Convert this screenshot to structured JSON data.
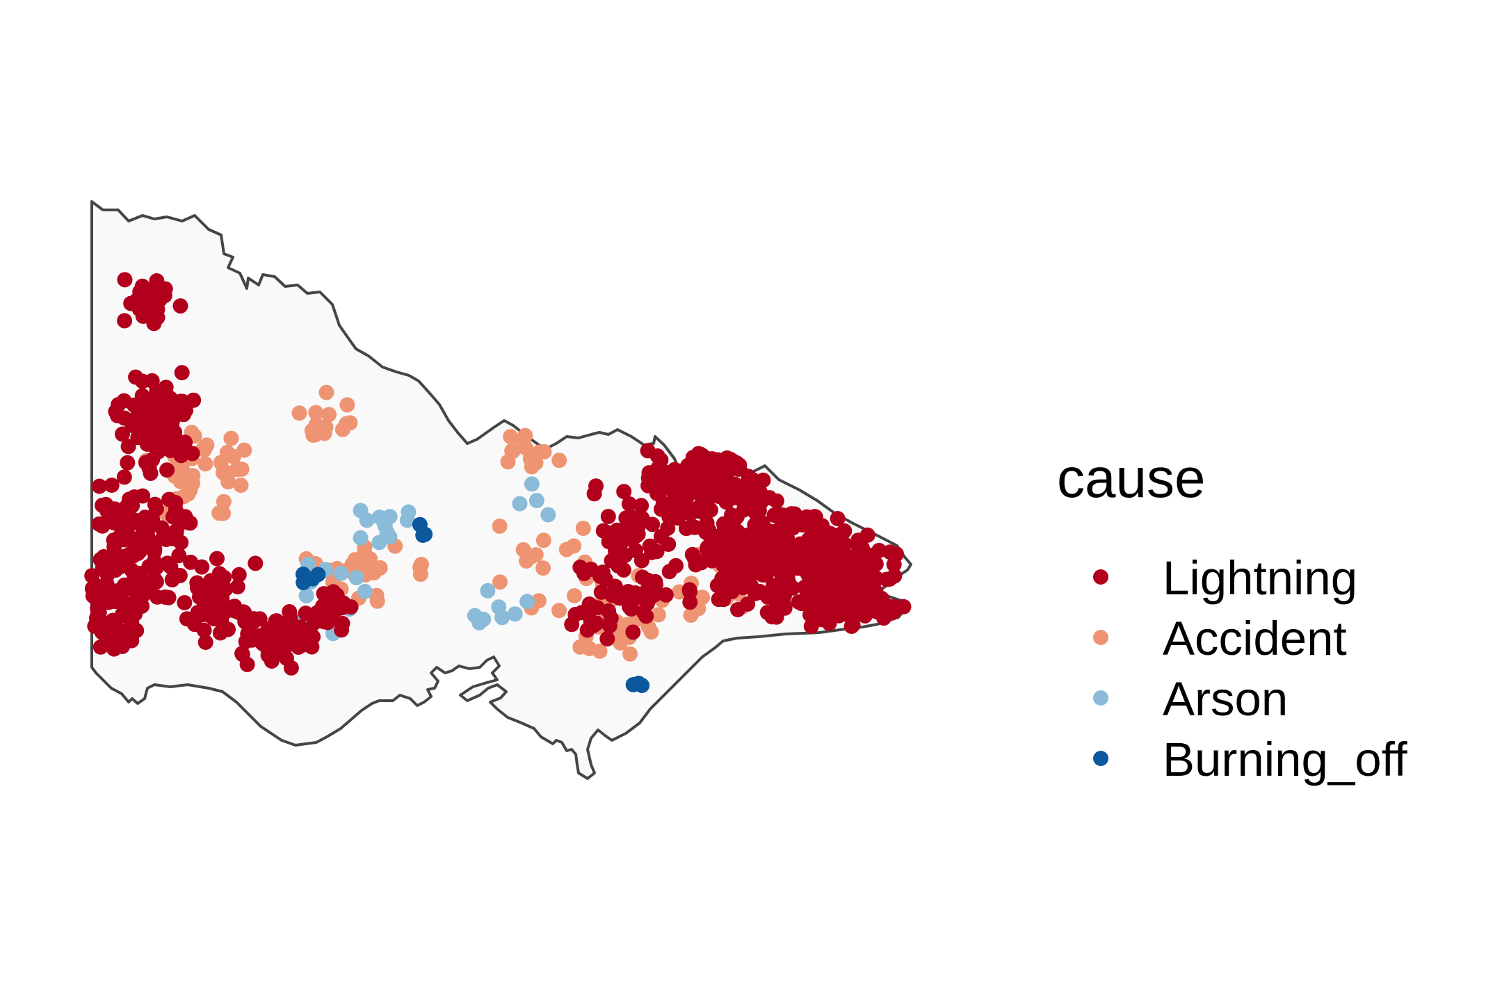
{
  "legend": {
    "title": "cause",
    "entries": [
      {
        "name": "Lightning",
        "color": "#b2001c"
      },
      {
        "name": "Accident",
        "color": "#ef9473"
      },
      {
        "name": "Arson",
        "color": "#8abbd9"
      },
      {
        "name": "Burning_off",
        "color": "#0b589c"
      }
    ]
  },
  "map_style": {
    "fill": "#f9f9f9",
    "border": "#454545"
  },
  "chart_data": {
    "type": "scatter",
    "region": "Victoria, Australia",
    "color_by": "cause",
    "series": [
      {
        "name": "Lightning",
        "color": "#b2001c"
      },
      {
        "name": "Accident",
        "color": "#ef9473"
      },
      {
        "name": "Arson",
        "color": "#8abbd9"
      },
      {
        "name": "Burning_off",
        "color": "#0b589c"
      }
    ]
  }
}
